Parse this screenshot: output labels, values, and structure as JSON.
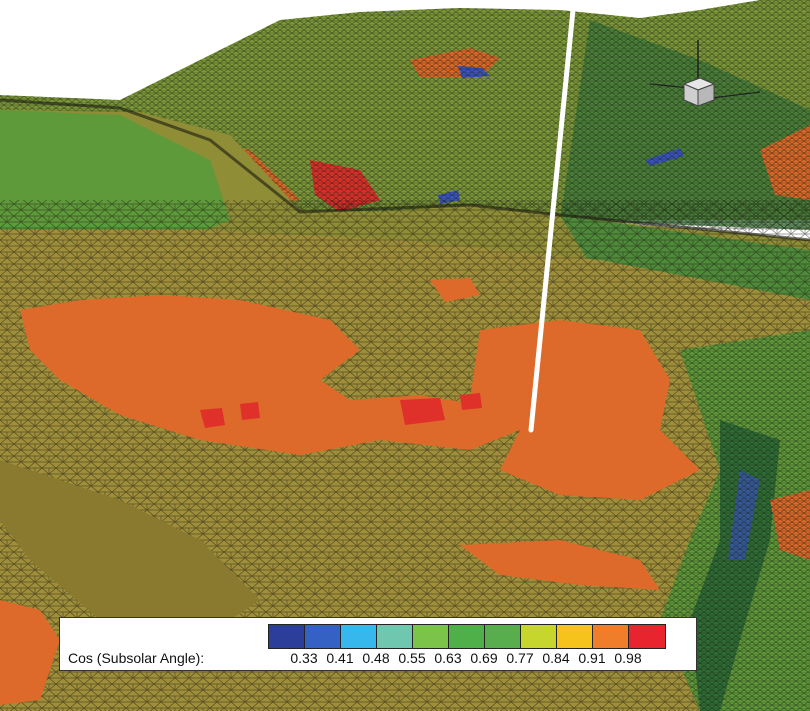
{
  "legend": {
    "title": "Cos (Subsolar Angle):",
    "colors": [
      "#2b3f9a",
      "#3560c4",
      "#36b8ec",
      "#6fc7b0",
      "#7cc349",
      "#4fb04a",
      "#58ad4c",
      "#c6d62d",
      "#f6c21c",
      "#ef7d2a",
      "#e8252e"
    ],
    "labels": [
      "0.33",
      "0.41",
      "0.48",
      "0.55",
      "0.63",
      "0.69",
      "0.77",
      "0.84",
      "0.91",
      "0.98"
    ]
  },
  "terrain_colors": {
    "olive": "#a08f3a",
    "olive_dark": "#8a7a30",
    "green": "#5f9a3a",
    "green_dark": "#2f6e36",
    "orange": "#dd6a2a",
    "red": "#e0302a",
    "blue": "#3a55c0",
    "mesh_line": "#1a1a10",
    "sky": "#ffffff"
  },
  "icons": [
    "sun-direction-line",
    "camera-axes-cube-icon"
  ]
}
